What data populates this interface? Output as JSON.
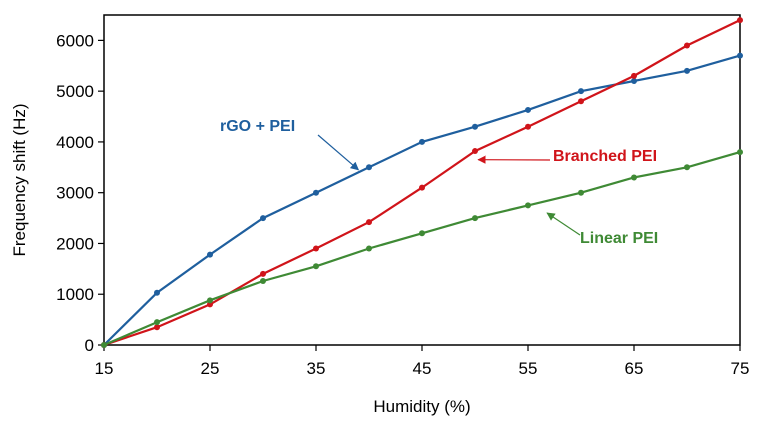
{
  "chart_data": {
    "type": "line",
    "title": "",
    "xlabel": "Humidity (%)",
    "ylabel": "Frequency shift (Hz)",
    "xlim": [
      15,
      75
    ],
    "ylim": [
      0,
      6500
    ],
    "x_ticks": [
      15,
      25,
      35,
      45,
      55,
      65,
      75
    ],
    "y_ticks": [
      0,
      1000,
      2000,
      3000,
      4000,
      5000,
      6000
    ],
    "grid": false,
    "legend": "none",
    "x": [
      15,
      20,
      25,
      30,
      35,
      40,
      45,
      50,
      55,
      60,
      65,
      70,
      75
    ],
    "series": [
      {
        "key": "rgo",
        "color": "#1f5f9e",
        "values": [
          0,
          1030,
          1780,
          2500,
          3000,
          3500,
          4000,
          4300,
          4630,
          5000,
          5200,
          5400,
          5700
        ]
      },
      {
        "key": "branched",
        "color": "#d0141a",
        "values": [
          0,
          350,
          800,
          1400,
          1900,
          2420,
          3100,
          3820,
          4300,
          4800,
          5300,
          5900,
          6400
        ]
      },
      {
        "key": "linear",
        "color": "#3f8a35",
        "values": [
          0,
          450,
          880,
          1260,
          1550,
          1900,
          2200,
          2500,
          2750,
          3000,
          3300,
          3500,
          3800
        ]
      }
    ],
    "annotations": [
      {
        "series": "rgo",
        "text": "rGO + PEI",
        "points_to": [
          39,
          3450
        ],
        "color": "#1f5f9e"
      },
      {
        "series": "branched",
        "text": "Branched PEI",
        "points_to": [
          50.3,
          3650
        ],
        "color": "#d0141a"
      },
      {
        "series": "linear",
        "text": "Linear PEI",
        "points_to": [
          56.8,
          2600
        ],
        "color": "#3f8a35"
      }
    ]
  }
}
